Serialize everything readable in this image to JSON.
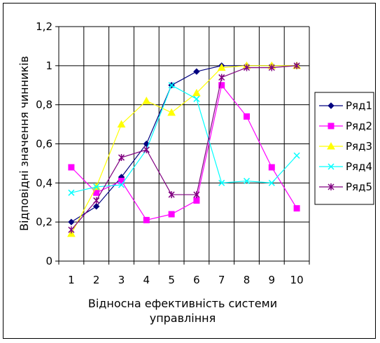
{
  "chart_data": {
    "type": "line",
    "title": "",
    "xlabel": "Відносна ефективність системи управління",
    "xlabel_lines": [
      "Відносна ефективність системи",
      "управління"
    ],
    "ylabel": "Відповідні значення чинників",
    "categories": [
      "1",
      "2",
      "3",
      "4",
      "5",
      "6",
      "7",
      "8",
      "9",
      "10"
    ],
    "ylim": [
      0,
      1.2
    ],
    "yticks": [
      "0",
      "0,2",
      "0,4",
      "0,6",
      "0,8",
      "1",
      "1,2"
    ],
    "grid": true,
    "legend_position": "right",
    "series": [
      {
        "name": "Ряд1",
        "color": "#000080",
        "marker": "diamond",
        "values": [
          0.2,
          0.28,
          0.43,
          0.6,
          0.9,
          0.97,
          1.0,
          1.0,
          1.0,
          1.0
        ]
      },
      {
        "name": "Ряд2",
        "color": "#FF00FF",
        "marker": "square",
        "values": [
          0.48,
          0.35,
          0.41,
          0.21,
          0.24,
          0.31,
          0.9,
          0.74,
          0.48,
          0.27
        ]
      },
      {
        "name": "Ряд3",
        "color": "#FFFF00",
        "marker": "triangle",
        "values": [
          0.14,
          0.38,
          0.7,
          0.82,
          0.76,
          0.86,
          0.99,
          1.0,
          1.0,
          1.0
        ]
      },
      {
        "name": "Ряд4",
        "color": "#00FFFF",
        "marker": "x",
        "values": [
          0.35,
          0.38,
          0.39,
          0.57,
          0.9,
          0.83,
          0.4,
          0.41,
          0.4,
          0.54
        ]
      },
      {
        "name": "Ряд5",
        "color": "#800080",
        "marker": "star",
        "values": [
          0.16,
          0.31,
          0.53,
          0.57,
          0.34,
          0.34,
          0.94,
          0.99,
          0.99,
          1.0
        ]
      }
    ]
  }
}
